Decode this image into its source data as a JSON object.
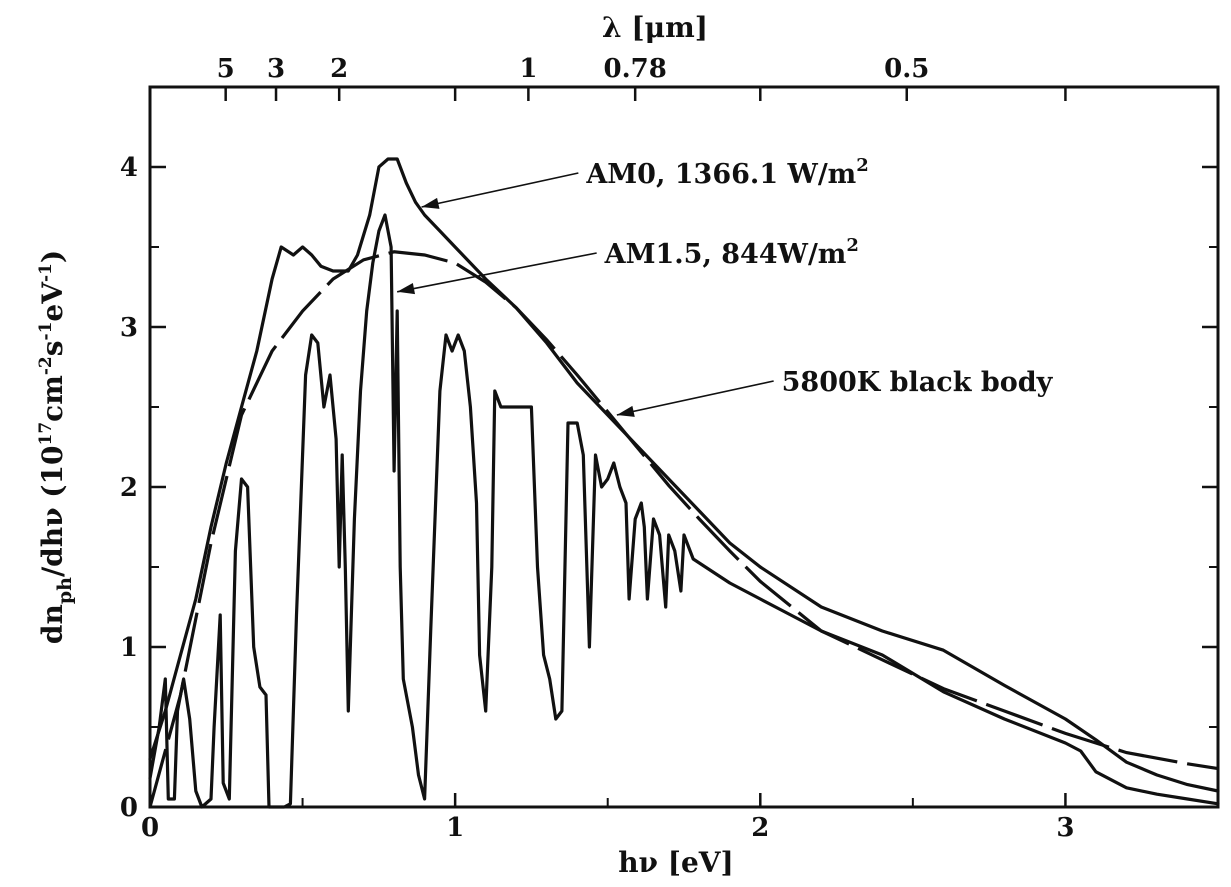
{
  "chart_data": {
    "type": "line",
    "xlabel": "hν [eV]",
    "ylabel_main": "dn",
    "ylabel_sub": "ph",
    "ylabel_mid": "/dhν (10",
    "ylabel_exp1": "17",
    "ylabel_mid2": "cm",
    "ylabel_exp2": "-2",
    "ylabel_mid3": "s",
    "ylabel_exp3": "-1",
    "ylabel_mid4": "eV",
    "ylabel_exp4": "-1",
    "ylabel_end": ")",
    "top_axis_label": "λ [μm]",
    "xlim": [
      0,
      3.5
    ],
    "ylim": [
      0,
      4.5
    ],
    "x_ticks": [
      0,
      1,
      2,
      3
    ],
    "x_tick_labels": [
      "0",
      "1",
      "2",
      "3"
    ],
    "y_ticks": [
      0,
      1,
      2,
      3,
      4
    ],
    "y_tick_labels": [
      "0",
      "1",
      "2",
      "3",
      "4"
    ],
    "top_ticks": [
      {
        "label": "5",
        "ev": 0.248
      },
      {
        "label": "3",
        "ev": 0.413
      },
      {
        "label": "2",
        "ev": 0.62
      },
      {
        "label": "1",
        "ev": 1.24
      },
      {
        "label": "0.78",
        "ev": 1.59
      },
      {
        "label": "0.5",
        "ev": 2.48
      }
    ],
    "annotations": [
      {
        "id": "am0",
        "text": "AM0, 1366.1 W/m",
        "sup": "2",
        "x": 1.43,
        "y": 3.9,
        "ax": 0.89,
        "ay": 3.75
      },
      {
        "id": "am15",
        "text": "AM1.5, 844W/m",
        "sup": "2",
        "x": 1.49,
        "y": 3.4,
        "ax": 0.81,
        "ay": 3.22
      },
      {
        "id": "bb",
        "text": "5800K black body",
        "x": 2.07,
        "y": 2.6,
        "ax": 1.53,
        "ay": 2.45
      }
    ],
    "series": [
      {
        "name": "AM0, 1366.1 W/m2",
        "style": "solid",
        "points": [
          [
            0,
            0.3
          ],
          [
            0.05,
            0.6
          ],
          [
            0.1,
            0.95
          ],
          [
            0.15,
            1.3
          ],
          [
            0.2,
            1.75
          ],
          [
            0.25,
            2.15
          ],
          [
            0.3,
            2.5
          ],
          [
            0.35,
            2.85
          ],
          [
            0.4,
            3.3
          ],
          [
            0.43,
            3.5
          ],
          [
            0.47,
            3.45
          ],
          [
            0.5,
            3.5
          ],
          [
            0.53,
            3.45
          ],
          [
            0.56,
            3.38
          ],
          [
            0.6,
            3.35
          ],
          [
            0.65,
            3.35
          ],
          [
            0.68,
            3.45
          ],
          [
            0.72,
            3.7
          ],
          [
            0.75,
            4.0
          ],
          [
            0.78,
            4.05
          ],
          [
            0.81,
            4.05
          ],
          [
            0.84,
            3.9
          ],
          [
            0.87,
            3.78
          ],
          [
            0.9,
            3.7
          ],
          [
            0.95,
            3.6
          ],
          [
            1.0,
            3.5
          ],
          [
            1.1,
            3.3
          ],
          [
            1.2,
            3.12
          ],
          [
            1.3,
            2.9
          ],
          [
            1.4,
            2.65
          ],
          [
            1.5,
            2.45
          ],
          [
            1.6,
            2.25
          ],
          [
            1.7,
            2.05
          ],
          [
            1.8,
            1.85
          ],
          [
            1.9,
            1.65
          ],
          [
            2.0,
            1.5
          ],
          [
            2.2,
            1.25
          ],
          [
            2.4,
            1.1
          ],
          [
            2.6,
            0.98
          ],
          [
            2.8,
            0.76
          ],
          [
            3.0,
            0.55
          ],
          [
            3.1,
            0.42
          ],
          [
            3.2,
            0.28
          ],
          [
            3.3,
            0.2
          ],
          [
            3.4,
            0.14
          ],
          [
            3.5,
            0.1
          ]
        ]
      },
      {
        "name": "AM1.5, 844W/m2",
        "style": "solid",
        "points": [
          [
            0,
            0.18
          ],
          [
            0.03,
            0.5
          ],
          [
            0.05,
            0.8
          ],
          [
            0.06,
            0.05
          ],
          [
            0.08,
            0.05
          ],
          [
            0.09,
            0.6
          ],
          [
            0.11,
            0.8
          ],
          [
            0.13,
            0.55
          ],
          [
            0.15,
            0.1
          ],
          [
            0.17,
            0.0
          ],
          [
            0.2,
            0.05
          ],
          [
            0.21,
            0.5
          ],
          [
            0.23,
            1.2
          ],
          [
            0.24,
            0.15
          ],
          [
            0.26,
            0.05
          ],
          [
            0.28,
            1.6
          ],
          [
            0.3,
            2.05
          ],
          [
            0.32,
            2.0
          ],
          [
            0.34,
            1.0
          ],
          [
            0.36,
            0.75
          ],
          [
            0.38,
            0.7
          ],
          [
            0.39,
            0.0
          ],
          [
            0.44,
            0.0
          ],
          [
            0.46,
            0.02
          ],
          [
            0.48,
            1.2
          ],
          [
            0.51,
            2.7
          ],
          [
            0.53,
            2.95
          ],
          [
            0.55,
            2.9
          ],
          [
            0.57,
            2.5
          ],
          [
            0.59,
            2.7
          ],
          [
            0.61,
            2.3
          ],
          [
            0.62,
            1.5
          ],
          [
            0.63,
            2.2
          ],
          [
            0.64,
            1.5
          ],
          [
            0.65,
            0.6
          ],
          [
            0.67,
            1.8
          ],
          [
            0.69,
            2.6
          ],
          [
            0.71,
            3.1
          ],
          [
            0.73,
            3.4
          ],
          [
            0.75,
            3.6
          ],
          [
            0.77,
            3.7
          ],
          [
            0.79,
            3.5
          ],
          [
            0.8,
            2.1
          ],
          [
            0.81,
            3.1
          ],
          [
            0.82,
            1.5
          ],
          [
            0.83,
            0.8
          ],
          [
            0.86,
            0.5
          ],
          [
            0.88,
            0.2
          ],
          [
            0.9,
            0.05
          ],
          [
            0.92,
            1.1
          ],
          [
            0.95,
            2.6
          ],
          [
            0.97,
            2.95
          ],
          [
            0.99,
            2.85
          ],
          [
            1.01,
            2.95
          ],
          [
            1.03,
            2.85
          ],
          [
            1.05,
            2.5
          ],
          [
            1.07,
            1.9
          ],
          [
            1.08,
            0.95
          ],
          [
            1.1,
            0.6
          ],
          [
            1.12,
            1.5
          ],
          [
            1.13,
            2.6
          ],
          [
            1.15,
            2.5
          ],
          [
            1.2,
            2.5
          ],
          [
            1.25,
            2.5
          ],
          [
            1.27,
            1.5
          ],
          [
            1.29,
            0.95
          ],
          [
            1.31,
            0.8
          ],
          [
            1.33,
            0.55
          ],
          [
            1.35,
            0.6
          ],
          [
            1.37,
            2.4
          ],
          [
            1.4,
            2.4
          ],
          [
            1.42,
            2.2
          ],
          [
            1.44,
            1.0
          ],
          [
            1.46,
            2.2
          ],
          [
            1.48,
            2.0
          ],
          [
            1.5,
            2.05
          ],
          [
            1.52,
            2.15
          ],
          [
            1.54,
            2.0
          ],
          [
            1.56,
            1.9
          ],
          [
            1.57,
            1.3
          ],
          [
            1.59,
            1.8
          ],
          [
            1.61,
            1.9
          ],
          [
            1.62,
            1.75
          ],
          [
            1.63,
            1.3
          ],
          [
            1.65,
            1.8
          ],
          [
            1.67,
            1.7
          ],
          [
            1.69,
            1.25
          ],
          [
            1.7,
            1.7
          ],
          [
            1.72,
            1.6
          ],
          [
            1.74,
            1.35
          ],
          [
            1.75,
            1.7
          ],
          [
            1.78,
            1.55
          ],
          [
            1.82,
            1.5
          ],
          [
            1.9,
            1.4
          ],
          [
            2.0,
            1.3
          ],
          [
            2.1,
            1.2
          ],
          [
            2.2,
            1.1
          ],
          [
            2.4,
            0.95
          ],
          [
            2.6,
            0.72
          ],
          [
            2.8,
            0.55
          ],
          [
            3.0,
            0.4
          ],
          [
            3.05,
            0.35
          ],
          [
            3.1,
            0.22
          ],
          [
            3.2,
            0.12
          ],
          [
            3.3,
            0.08
          ],
          [
            3.4,
            0.05
          ],
          [
            3.5,
            0.02
          ]
        ]
      },
      {
        "name": "5800K black body",
        "style": "dashed",
        "points": [
          [
            0,
            0.0
          ],
          [
            0.1,
            0.7
          ],
          [
            0.2,
            1.65
          ],
          [
            0.3,
            2.45
          ],
          [
            0.4,
            2.85
          ],
          [
            0.5,
            3.1
          ],
          [
            0.6,
            3.3
          ],
          [
            0.7,
            3.42
          ],
          [
            0.8,
            3.47
          ],
          [
            0.9,
            3.45
          ],
          [
            1.0,
            3.4
          ],
          [
            1.1,
            3.28
          ],
          [
            1.2,
            3.12
          ],
          [
            1.3,
            2.92
          ],
          [
            1.4,
            2.7
          ],
          [
            1.5,
            2.47
          ],
          [
            1.6,
            2.24
          ],
          [
            1.7,
            2.01
          ],
          [
            1.8,
            1.8
          ],
          [
            1.9,
            1.6
          ],
          [
            2.0,
            1.41
          ],
          [
            2.2,
            1.1
          ],
          [
            2.4,
            0.92
          ],
          [
            2.6,
            0.74
          ],
          [
            2.8,
            0.6
          ],
          [
            3.0,
            0.46
          ],
          [
            3.2,
            0.34
          ],
          [
            3.4,
            0.27
          ],
          [
            3.5,
            0.24
          ]
        ]
      }
    ]
  }
}
